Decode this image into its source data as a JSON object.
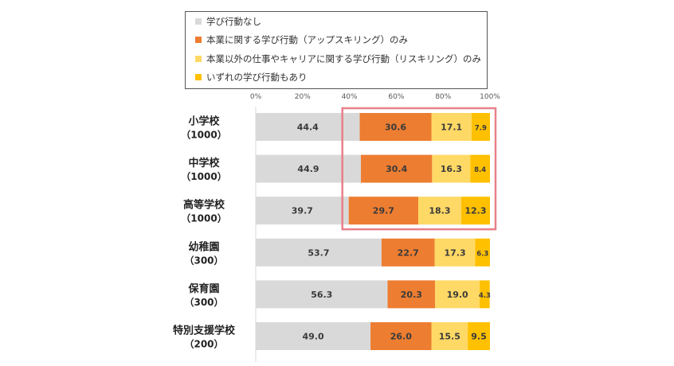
{
  "colors": {
    "none": "#d9d9d9",
    "upskill": "#ed7d31",
    "reskill": "#ffd966",
    "both": "#ffc000",
    "highlight": "#e8808a"
  },
  "legend": [
    {
      "label": "学び行動なし",
      "color": "#d9d9d9"
    },
    {
      "label": "本業に関する学び行動（アップスキリング）のみ",
      "color": "#ed7d31"
    },
    {
      "label": "本業以外の仕事やキャリアに関する学び行動（リスキリング）のみ",
      "color": "#ffd966"
    },
    {
      "label": "いずれの学び行動もあり",
      "color": "#ffc000"
    }
  ],
  "chart_data": {
    "type": "bar",
    "orientation": "horizontal",
    "stacked": "percent",
    "xlim": [
      0,
      100
    ],
    "xticks": [
      "0%",
      "20%",
      "40%",
      "60%",
      "80%",
      "100%"
    ],
    "xtick_values": [
      0,
      20,
      40,
      60,
      80,
      100
    ],
    "legend_position": "top",
    "grid": false,
    "categories": [
      {
        "name": "小学校",
        "n": "（1000）"
      },
      {
        "name": "中学校",
        "n": "（1000）"
      },
      {
        "name": "高等学校",
        "n": "（1000）"
      },
      {
        "name": "幼稚園",
        "n": "（300）"
      },
      {
        "name": "保育園",
        "n": "（300）"
      },
      {
        "name": "特別支援学校",
        "n": "（200）"
      }
    ],
    "series": [
      {
        "name": "学び行動なし",
        "values": [
          44.4,
          44.9,
          39.7,
          53.7,
          56.3,
          49.0
        ]
      },
      {
        "name": "本業に関する学び行動（アップスキリング）のみ",
        "values": [
          30.6,
          30.4,
          29.7,
          22.7,
          20.3,
          26.0
        ]
      },
      {
        "name": "本業以外の仕事やキャリアに関する学び行動（リスキリング）のみ",
        "values": [
          17.1,
          16.3,
          18.3,
          17.3,
          19.0,
          15.5
        ]
      },
      {
        "name": "いずれの学び行動もあり",
        "values": [
          7.9,
          8.4,
          12.3,
          6.3,
          4.3,
          9.5
        ]
      }
    ],
    "value_labels": [
      [
        "44.4",
        "30.6",
        "17.1",
        "7.9"
      ],
      [
        "44.9",
        "30.4",
        "16.3",
        "8.4"
      ],
      [
        "39.7",
        "29.7",
        "18.3",
        "12.3"
      ],
      [
        "53.7",
        "22.7",
        "17.3",
        "6.3"
      ],
      [
        "56.3",
        "20.3",
        "19.0",
        "4.3"
      ],
      [
        "49.0",
        "26.0",
        "15.5",
        "9.5"
      ]
    ],
    "highlight_categories": [
      "小学校",
      "中学校",
      "高等学校"
    ],
    "highlight_from_series": 1
  }
}
